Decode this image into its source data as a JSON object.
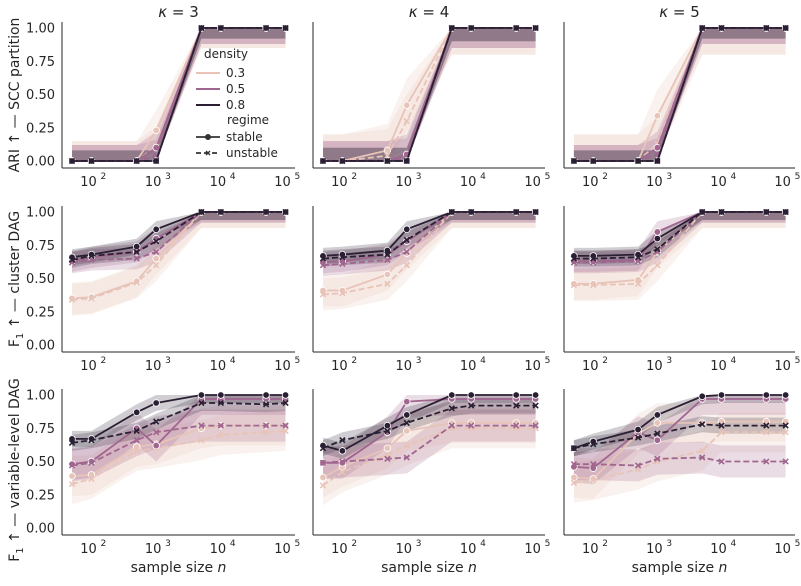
{
  "chart_data": {
    "type": "line",
    "x_scale": "log",
    "xlabel": "sample size n",
    "x_ticks": [
      100,
      1000,
      10000,
      100000
    ],
    "x_tick_labels": [
      {
        "base": "10",
        "exp": "2"
      },
      {
        "base": "10",
        "exp": "3"
      },
      {
        "base": "10",
        "exp": "4"
      },
      {
        "base": "10",
        "exp": "5"
      }
    ],
    "y_ticks": [
      "0.00",
      "0.25",
      "0.50",
      "0.75",
      "1.00"
    ],
    "ylim": [
      0,
      1
    ],
    "x": [
      50,
      100,
      500,
      1000,
      5000,
      10000,
      50000,
      100000
    ],
    "columns": [
      {
        "kappa_label": "κ",
        "kappa_value": "= 3"
      },
      {
        "kappa_label": "κ",
        "kappa_value": "= 4"
      },
      {
        "kappa_label": "κ",
        "kappa_value": "= 5"
      }
    ],
    "rows": [
      {
        "ylabel": "ARI ↑ — SCC partition"
      },
      {
        "ylabel": "cluster DAG",
        "ylabel_prefix": "F",
        "ylabel_sub": "1",
        "ylabel_arrow": " ↑ — "
      },
      {
        "ylabel": "variable-level DAG",
        "ylabel_prefix": "F",
        "ylabel_sub": "1",
        "ylabel_arrow": " ↑ — "
      }
    ],
    "legend": {
      "placement": "top-right of first panel",
      "density_title": "density",
      "density_items": [
        {
          "label": "0.3",
          "color": "#e8c4b8"
        },
        {
          "label": "0.5",
          "color": "#a0668f"
        },
        {
          "label": "0.8",
          "color": "#2b1f33"
        }
      ],
      "regime_title": "regime",
      "regime_items": [
        {
          "label": "stable",
          "dash": "solid"
        },
        {
          "label": "unstable",
          "dash": "dashed"
        }
      ]
    },
    "colors": {
      "d03": "#e8c4b8",
      "d05": "#a0668f",
      "d08": "#2b1f33"
    },
    "panels": [
      [
        {
          "series": [
            {
              "density": "0.3",
              "regime": "stable",
              "y": [
                0,
                0,
                0,
                0.23,
                1,
                1,
                1,
                1
              ],
              "band": 0.15
            },
            {
              "density": "0.3",
              "regime": "unstable",
              "y": [
                0,
                0,
                0,
                0.11,
                1,
                1,
                1,
                1
              ],
              "band": 0.15
            },
            {
              "density": "0.5",
              "regime": "stable",
              "y": [
                0,
                0,
                0,
                0.1,
                1,
                1,
                1,
                1
              ],
              "band": 0.12
            },
            {
              "density": "0.5",
              "regime": "unstable",
              "y": [
                0,
                0,
                0,
                0.04,
                1,
                1,
                1,
                1
              ],
              "band": 0.12
            },
            {
              "density": "0.8",
              "regime": "stable",
              "y": [
                0,
                0,
                0,
                0,
                1,
                1,
                1,
                1
              ],
              "band": 0.08
            },
            {
              "density": "0.8",
              "regime": "unstable",
              "y": [
                0,
                0,
                0,
                0,
                1,
                1,
                1,
                1
              ],
              "band": 0.08
            }
          ]
        },
        {
          "series": [
            {
              "density": "0.3",
              "regime": "stable",
              "y": [
                0,
                0,
                0.08,
                0.42,
                1,
                1,
                1,
                1
              ],
              "band": 0.2
            },
            {
              "density": "0.3",
              "regime": "unstable",
              "y": [
                0,
                0,
                0.04,
                0.3,
                1,
                1,
                1,
                1
              ],
              "band": 0.2
            },
            {
              "density": "0.5",
              "regime": "stable",
              "y": [
                0,
                0,
                0,
                0.05,
                1,
                1,
                1,
                1
              ],
              "band": 0.15
            },
            {
              "density": "0.5",
              "regime": "unstable",
              "y": [
                0,
                0,
                0,
                0.02,
                1,
                1,
                1,
                1
              ],
              "band": 0.15
            },
            {
              "density": "0.8",
              "regime": "stable",
              "y": [
                0,
                0,
                0,
                0,
                1,
                1,
                1,
                1
              ],
              "band": 0.1
            },
            {
              "density": "0.8",
              "regime": "unstable",
              "y": [
                0,
                0,
                0,
                0,
                1,
                1,
                1,
                1
              ],
              "band": 0.1
            }
          ]
        },
        {
          "series": [
            {
              "density": "0.3",
              "regime": "stable",
              "y": [
                0,
                0,
                0,
                0.34,
                1,
                1,
                1,
                1
              ],
              "band": 0.2
            },
            {
              "density": "0.3",
              "regime": "unstable",
              "y": [
                0,
                0,
                0,
                0.13,
                1,
                1,
                1,
                1
              ],
              "band": 0.2
            },
            {
              "density": "0.5",
              "regime": "stable",
              "y": [
                0,
                0,
                0,
                0.1,
                1,
                1,
                1,
                1
              ],
              "band": 0.12
            },
            {
              "density": "0.5",
              "regime": "unstable",
              "y": [
                0,
                0,
                0,
                0.05,
                1,
                1,
                1,
                1
              ],
              "band": 0.12
            },
            {
              "density": "0.8",
              "regime": "stable",
              "y": [
                0,
                0,
                0,
                0,
                1,
                1,
                1,
                1
              ],
              "band": 0.08
            },
            {
              "density": "0.8",
              "regime": "unstable",
              "y": [
                0,
                0,
                0,
                0,
                1,
                1,
                1,
                1
              ],
              "band": 0.08
            }
          ]
        }
      ],
      [
        {
          "series": [
            {
              "density": "0.3",
              "regime": "stable",
              "y": [
                0.35,
                0.36,
                0.48,
                0.65,
                1,
                1,
                1,
                1
              ],
              "band": 0.12
            },
            {
              "density": "0.3",
              "regime": "unstable",
              "y": [
                0.34,
                0.35,
                0.47,
                0.6,
                1,
                1,
                1,
                1
              ],
              "band": 0.12
            },
            {
              "density": "0.5",
              "regime": "stable",
              "y": [
                0.63,
                0.66,
                0.7,
                0.8,
                1,
                1,
                1,
                1
              ],
              "band": 0.08
            },
            {
              "density": "0.5",
              "regime": "unstable",
              "y": [
                0.62,
                0.64,
                0.65,
                0.7,
                1,
                1,
                1,
                1
              ],
              "band": 0.08
            },
            {
              "density": "0.8",
              "regime": "stable",
              "y": [
                0.66,
                0.68,
                0.74,
                0.87,
                1,
                1,
                1,
                1
              ],
              "band": 0.06
            },
            {
              "density": "0.8",
              "regime": "unstable",
              "y": [
                0.64,
                0.67,
                0.7,
                0.78,
                1,
                1,
                1,
                1
              ],
              "band": 0.06
            }
          ]
        },
        {
          "series": [
            {
              "density": "0.3",
              "regime": "stable",
              "y": [
                0.41,
                0.41,
                0.53,
                0.69,
                1,
                1,
                1,
                1
              ],
              "band": 0.12
            },
            {
              "density": "0.3",
              "regime": "unstable",
              "y": [
                0.38,
                0.39,
                0.46,
                0.6,
                1,
                1,
                1,
                1
              ],
              "band": 0.12
            },
            {
              "density": "0.5",
              "regime": "stable",
              "y": [
                0.62,
                0.63,
                0.68,
                0.78,
                1,
                1,
                1,
                1
              ],
              "band": 0.08
            },
            {
              "density": "0.5",
              "regime": "unstable",
              "y": [
                0.6,
                0.61,
                0.64,
                0.7,
                1,
                1,
                1,
                1
              ],
              "band": 0.08
            },
            {
              "density": "0.8",
              "regime": "stable",
              "y": [
                0.67,
                0.68,
                0.71,
                0.87,
                1,
                1,
                1,
                1
              ],
              "band": 0.06
            },
            {
              "density": "0.8",
              "regime": "unstable",
              "y": [
                0.65,
                0.66,
                0.68,
                0.79,
                1,
                1,
                1,
                1
              ],
              "band": 0.06
            }
          ]
        },
        {
          "series": [
            {
              "density": "0.3",
              "regime": "stable",
              "y": [
                0.46,
                0.46,
                0.49,
                0.7,
                1,
                1,
                1,
                1
              ],
              "band": 0.12
            },
            {
              "density": "0.3",
              "regime": "unstable",
              "y": [
                0.45,
                0.45,
                0.46,
                0.6,
                1,
                1,
                1,
                1
              ],
              "band": 0.12
            },
            {
              "density": "0.5",
              "regime": "stable",
              "y": [
                0.63,
                0.63,
                0.64,
                0.85,
                1,
                1,
                1,
                1
              ],
              "band": 0.08
            },
            {
              "density": "0.5",
              "regime": "unstable",
              "y": [
                0.62,
                0.62,
                0.63,
                0.7,
                1,
                1,
                1,
                1
              ],
              "band": 0.08
            },
            {
              "density": "0.8",
              "regime": "stable",
              "y": [
                0.67,
                0.67,
                0.68,
                0.8,
                1,
                1,
                1,
                1
              ],
              "band": 0.06
            },
            {
              "density": "0.8",
              "regime": "unstable",
              "y": [
                0.65,
                0.65,
                0.66,
                0.72,
                1,
                1,
                1,
                1
              ],
              "band": 0.06
            }
          ]
        }
      ],
      [
        {
          "series": [
            {
              "density": "0.3",
              "regime": "stable",
              "y": [
                0.39,
                0.4,
                0.61,
                0.63,
                0.75,
                0.77,
                0.77,
                0.77
              ],
              "band": 0.15
            },
            {
              "density": "0.3",
              "regime": "unstable",
              "y": [
                0.33,
                0.37,
                0.58,
                0.6,
                0.66,
                0.7,
                0.72,
                0.73
              ],
              "band": 0.15
            },
            {
              "density": "0.5",
              "regime": "stable",
              "y": [
                0.48,
                0.5,
                0.75,
                0.62,
                0.97,
                0.97,
                0.97,
                0.97
              ],
              "band": 0.12
            },
            {
              "density": "0.5",
              "regime": "unstable",
              "y": [
                0.47,
                0.49,
                0.66,
                0.72,
                0.77,
                0.77,
                0.77,
                0.77
              ],
              "band": 0.12
            },
            {
              "density": "0.8",
              "regime": "stable",
              "y": [
                0.67,
                0.67,
                0.87,
                0.94,
                1,
                1,
                1,
                1
              ],
              "band": 0.06
            },
            {
              "density": "0.8",
              "regime": "unstable",
              "y": [
                0.64,
                0.66,
                0.73,
                0.8,
                0.94,
                0.94,
                0.93,
                0.94
              ],
              "band": 0.06
            }
          ]
        },
        {
          "series": [
            {
              "density": "0.3",
              "regime": "stable",
              "y": [
                0.38,
                0.46,
                0.6,
                0.73,
                0.79,
                0.79,
                0.79,
                0.79
              ],
              "band": 0.15
            },
            {
              "density": "0.3",
              "regime": "unstable",
              "y": [
                0.32,
                0.42,
                0.55,
                0.62,
                0.75,
                0.75,
                0.75,
                0.75
              ],
              "band": 0.15
            },
            {
              "density": "0.5",
              "regime": "stable",
              "y": [
                0.49,
                0.49,
                0.72,
                0.95,
                0.97,
                0.97,
                0.97,
                0.97
              ],
              "band": 0.12
            },
            {
              "density": "0.5",
              "regime": "unstable",
              "y": [
                0.49,
                0.5,
                0.52,
                0.53,
                0.77,
                0.77,
                0.77,
                0.77
              ],
              "band": 0.12
            },
            {
              "density": "0.8",
              "regime": "stable",
              "y": [
                0.62,
                0.58,
                0.77,
                0.85,
                1,
                1,
                1,
                1
              ],
              "band": 0.06
            },
            {
              "density": "0.8",
              "regime": "unstable",
              "y": [
                0.6,
                0.66,
                0.73,
                0.79,
                0.9,
                0.92,
                0.92,
                0.92
              ],
              "band": 0.06
            }
          ]
        },
        {
          "series": [
            {
              "density": "0.3",
              "regime": "stable",
              "y": [
                0.38,
                0.37,
                0.71,
                0.79,
                0.79,
                0.8,
                0.8,
                0.8
              ],
              "band": 0.15
            },
            {
              "density": "0.3",
              "regime": "unstable",
              "y": [
                0.34,
                0.36,
                0.44,
                0.5,
                0.58,
                0.72,
                0.72,
                0.72
              ],
              "band": 0.15
            },
            {
              "density": "0.5",
              "regime": "stable",
              "y": [
                0.46,
                0.45,
                0.72,
                0.66,
                0.97,
                0.97,
                0.97,
                0.97
              ],
              "band": 0.12
            },
            {
              "density": "0.5",
              "regime": "unstable",
              "y": [
                0.48,
                0.48,
                0.47,
                0.52,
                0.53,
                0.5,
                0.5,
                0.5
              ],
              "band": 0.12
            },
            {
              "density": "0.8",
              "regime": "stable",
              "y": [
                0.6,
                0.65,
                0.74,
                0.85,
                0.99,
                1,
                1,
                1
              ],
              "band": 0.06
            },
            {
              "density": "0.8",
              "regime": "unstable",
              "y": [
                0.6,
                0.63,
                0.68,
                0.71,
                0.78,
                0.77,
                0.77,
                0.77
              ],
              "band": 0.06
            }
          ]
        }
      ]
    ]
  }
}
